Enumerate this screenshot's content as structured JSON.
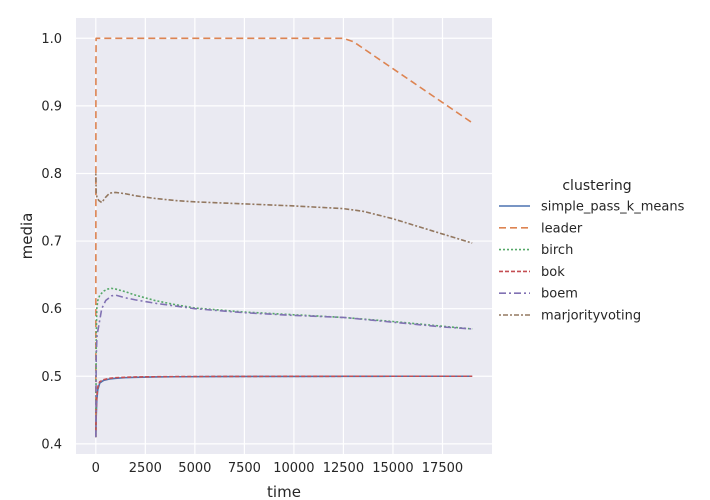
{
  "chart_data": {
    "type": "line",
    "xlabel": "time",
    "ylabel": "media",
    "xlim": [
      -1000,
      20000
    ],
    "ylim": [
      0.385,
      1.03
    ],
    "x_ticks": [
      0,
      2500,
      5000,
      7500,
      10000,
      12500,
      15000,
      17500
    ],
    "y_ticks": [
      0.4,
      0.5,
      0.6,
      0.7,
      0.8,
      0.9,
      1.0
    ],
    "x_tick_labels": [
      "0",
      "2500",
      "5000",
      "7500",
      "10000",
      "12500",
      "15000",
      "17500"
    ],
    "y_tick_labels": [
      "0.4",
      "0.5",
      "0.6",
      "0.7",
      "0.8",
      "0.9",
      "1.0"
    ],
    "grid": true,
    "background": "#eaeaf2",
    "legend": {
      "title": "clustering",
      "placement": "right"
    },
    "series": [
      {
        "name": "simple_pass_k_means",
        "color": "#4c72b0",
        "dash": "solid",
        "x": [
          0,
          20,
          50,
          100,
          200,
          400,
          700,
          1000,
          1500,
          2000,
          3000,
          4000,
          6000,
          8000,
          10000,
          12500,
          15000,
          17500,
          19000
        ],
        "y": [
          0.41,
          0.44,
          0.465,
          0.48,
          0.49,
          0.494,
          0.496,
          0.497,
          0.498,
          0.4985,
          0.499,
          0.4993,
          0.4995,
          0.4997,
          0.4998,
          0.4999,
          0.5,
          0.5,
          0.5
        ]
      },
      {
        "name": "leader",
        "color": "#dd8452",
        "dash": "7,4",
        "x": [
          0,
          5,
          15,
          50,
          1000,
          5000,
          10000,
          12500,
          13000,
          14000,
          15000,
          16000,
          17000,
          18000,
          19000
        ],
        "y": [
          0.41,
          0.95,
          1.0,
          1.0,
          1.0,
          1.0,
          1.0,
          1.0,
          0.995,
          0.975,
          0.955,
          0.935,
          0.915,
          0.895,
          0.875
        ]
      },
      {
        "name": "birch",
        "color": "#55a868",
        "dash": "2,2",
        "x": [
          0,
          20,
          50,
          100,
          200,
          400,
          600,
          800,
          1000,
          1500,
          2000,
          3000,
          4000,
          5000,
          7500,
          10000,
          12500,
          15000,
          17500,
          19000
        ],
        "y": [
          0.41,
          0.56,
          0.6,
          0.612,
          0.62,
          0.626,
          0.629,
          0.63,
          0.629,
          0.625,
          0.62,
          0.612,
          0.606,
          0.601,
          0.595,
          0.591,
          0.587,
          0.581,
          0.574,
          0.57
        ]
      },
      {
        "name": "bok",
        "color": "#c44e52",
        "dash": "4,2",
        "x": [
          0,
          20,
          50,
          100,
          200,
          400,
          700,
          1000,
          1500,
          2000,
          3000,
          4000,
          6000,
          8000,
          10000,
          12500,
          15000,
          17500,
          19000
        ],
        "y": [
          0.41,
          0.45,
          0.47,
          0.484,
          0.492,
          0.495,
          0.497,
          0.498,
          0.4985,
          0.499,
          0.4993,
          0.4995,
          0.4997,
          0.4998,
          0.4999,
          0.5,
          0.5,
          0.5,
          0.5
        ]
      },
      {
        "name": "boem",
        "color": "#8172b3",
        "dash": "7,3,2,3",
        "x": [
          0,
          20,
          60,
          150,
          300,
          500,
          800,
          1000,
          1500,
          2000,
          3000,
          4000,
          5000,
          7500,
          10000,
          12500,
          15000,
          17500,
          19000
        ],
        "y": [
          0.41,
          0.53,
          0.56,
          0.575,
          0.6,
          0.612,
          0.619,
          0.62,
          0.616,
          0.613,
          0.608,
          0.604,
          0.6,
          0.594,
          0.59,
          0.587,
          0.58,
          0.573,
          0.57
        ]
      },
      {
        "name": "marjorityvoting",
        "color": "#937860",
        "dash": "2,2,5,2",
        "x": [
          0,
          20,
          60,
          150,
          300,
          500,
          700,
          1000,
          1500,
          2000,
          3000,
          4000,
          5000,
          7500,
          10000,
          12500,
          13500,
          15000,
          16000,
          17000,
          18000,
          19000
        ],
        "y": [
          0.8,
          0.77,
          0.765,
          0.76,
          0.757,
          0.765,
          0.771,
          0.772,
          0.77,
          0.767,
          0.763,
          0.76,
          0.758,
          0.755,
          0.752,
          0.748,
          0.744,
          0.733,
          0.724,
          0.715,
          0.706,
          0.697
        ]
      }
    ]
  }
}
